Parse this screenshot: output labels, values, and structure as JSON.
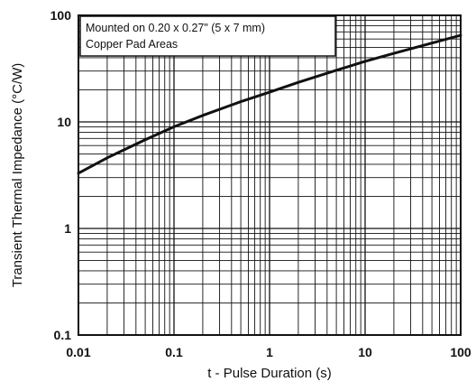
{
  "chart_data": {
    "type": "line",
    "xscale": "log",
    "yscale": "log",
    "xlim": [
      0.01,
      100
    ],
    "ylim": [
      0.1,
      100
    ],
    "xlabel": "t - Pulse Duration (s)",
    "ylabel": "Transient Thermal Impedance (°C/W)",
    "x_ticks": [
      "0.01",
      "0.1",
      "1",
      "10",
      "100"
    ],
    "y_ticks": [
      "0.1",
      "1",
      "10",
      "100"
    ],
    "grid": true,
    "annotation": {
      "line1": "Mounted on 0.20 x 0.27\" (5 x 7 mm)",
      "line2": "Copper Pad Areas",
      "placement": "top-left"
    },
    "series": [
      {
        "x": [
          0.01,
          0.02,
          0.05,
          0.1,
          0.2,
          0.5,
          1,
          2,
          5,
          10,
          20,
          50,
          100
        ],
        "y": [
          3.3,
          4.6,
          6.8,
          9.0,
          11.5,
          15.5,
          19.0,
          23.5,
          30.5,
          37.0,
          44.0,
          55.0,
          65.0
        ]
      }
    ]
  }
}
